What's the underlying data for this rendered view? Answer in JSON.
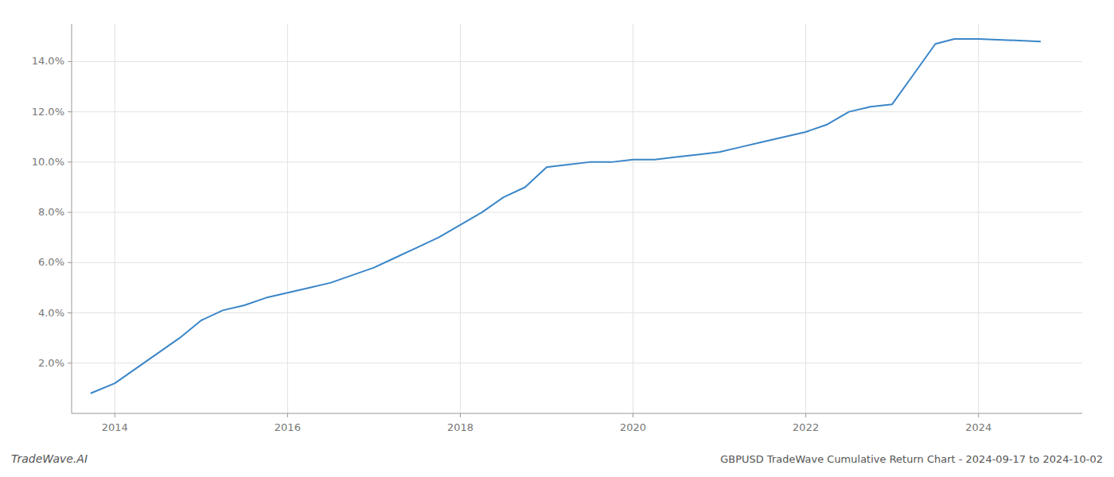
{
  "chart_data": {
    "type": "line",
    "title": "GBPUSD TradeWave Cumulative Return Chart - 2024-09-17 to 2024-10-02",
    "annotations": [
      "TradeWave.AI"
    ],
    "x": [
      2013.72,
      2014.0,
      2014.25,
      2014.5,
      2014.75,
      2015.0,
      2015.25,
      2015.5,
      2015.75,
      2016.0,
      2016.25,
      2016.5,
      2016.75,
      2017.0,
      2017.25,
      2017.5,
      2017.75,
      2018.0,
      2018.25,
      2018.5,
      2018.75,
      2019.0,
      2019.25,
      2019.5,
      2019.75,
      2020.0,
      2020.25,
      2020.5,
      2020.75,
      2021.0,
      2021.25,
      2021.5,
      2021.75,
      2022.0,
      2022.25,
      2022.5,
      2022.75,
      2023.0,
      2023.25,
      2023.5,
      2023.72,
      2024.0,
      2024.72
    ],
    "values": [
      0.008,
      0.012,
      0.018,
      0.024,
      0.03,
      0.037,
      0.041,
      0.043,
      0.046,
      0.048,
      0.05,
      0.052,
      0.055,
      0.058,
      0.062,
      0.066,
      0.07,
      0.075,
      0.08,
      0.086,
      0.09,
      0.098,
      0.099,
      0.1,
      0.1,
      0.101,
      0.101,
      0.102,
      0.103,
      0.104,
      0.106,
      0.108,
      0.11,
      0.112,
      0.115,
      0.12,
      0.122,
      0.123,
      0.135,
      0.147,
      0.149,
      0.149,
      0.148
    ],
    "color": "#3a86c8",
    "xlim": [
      2013.5,
      2025.2
    ],
    "ylim": [
      0.0,
      0.155
    ],
    "xticks": [
      2014,
      2016,
      2018,
      2020,
      2022,
      2024
    ],
    "yticks": [
      {
        "value": 0.02,
        "label": "2.0%"
      },
      {
        "value": 0.04,
        "label": "4.0%"
      },
      {
        "value": 0.06,
        "label": "6.0%"
      },
      {
        "value": 0.08,
        "label": "8.0%"
      },
      {
        "value": 0.1,
        "label": "10.0%"
      },
      {
        "value": 0.12,
        "label": "12.0%"
      },
      {
        "value": 0.14,
        "label": "14.0%"
      }
    ],
    "grid": true
  }
}
